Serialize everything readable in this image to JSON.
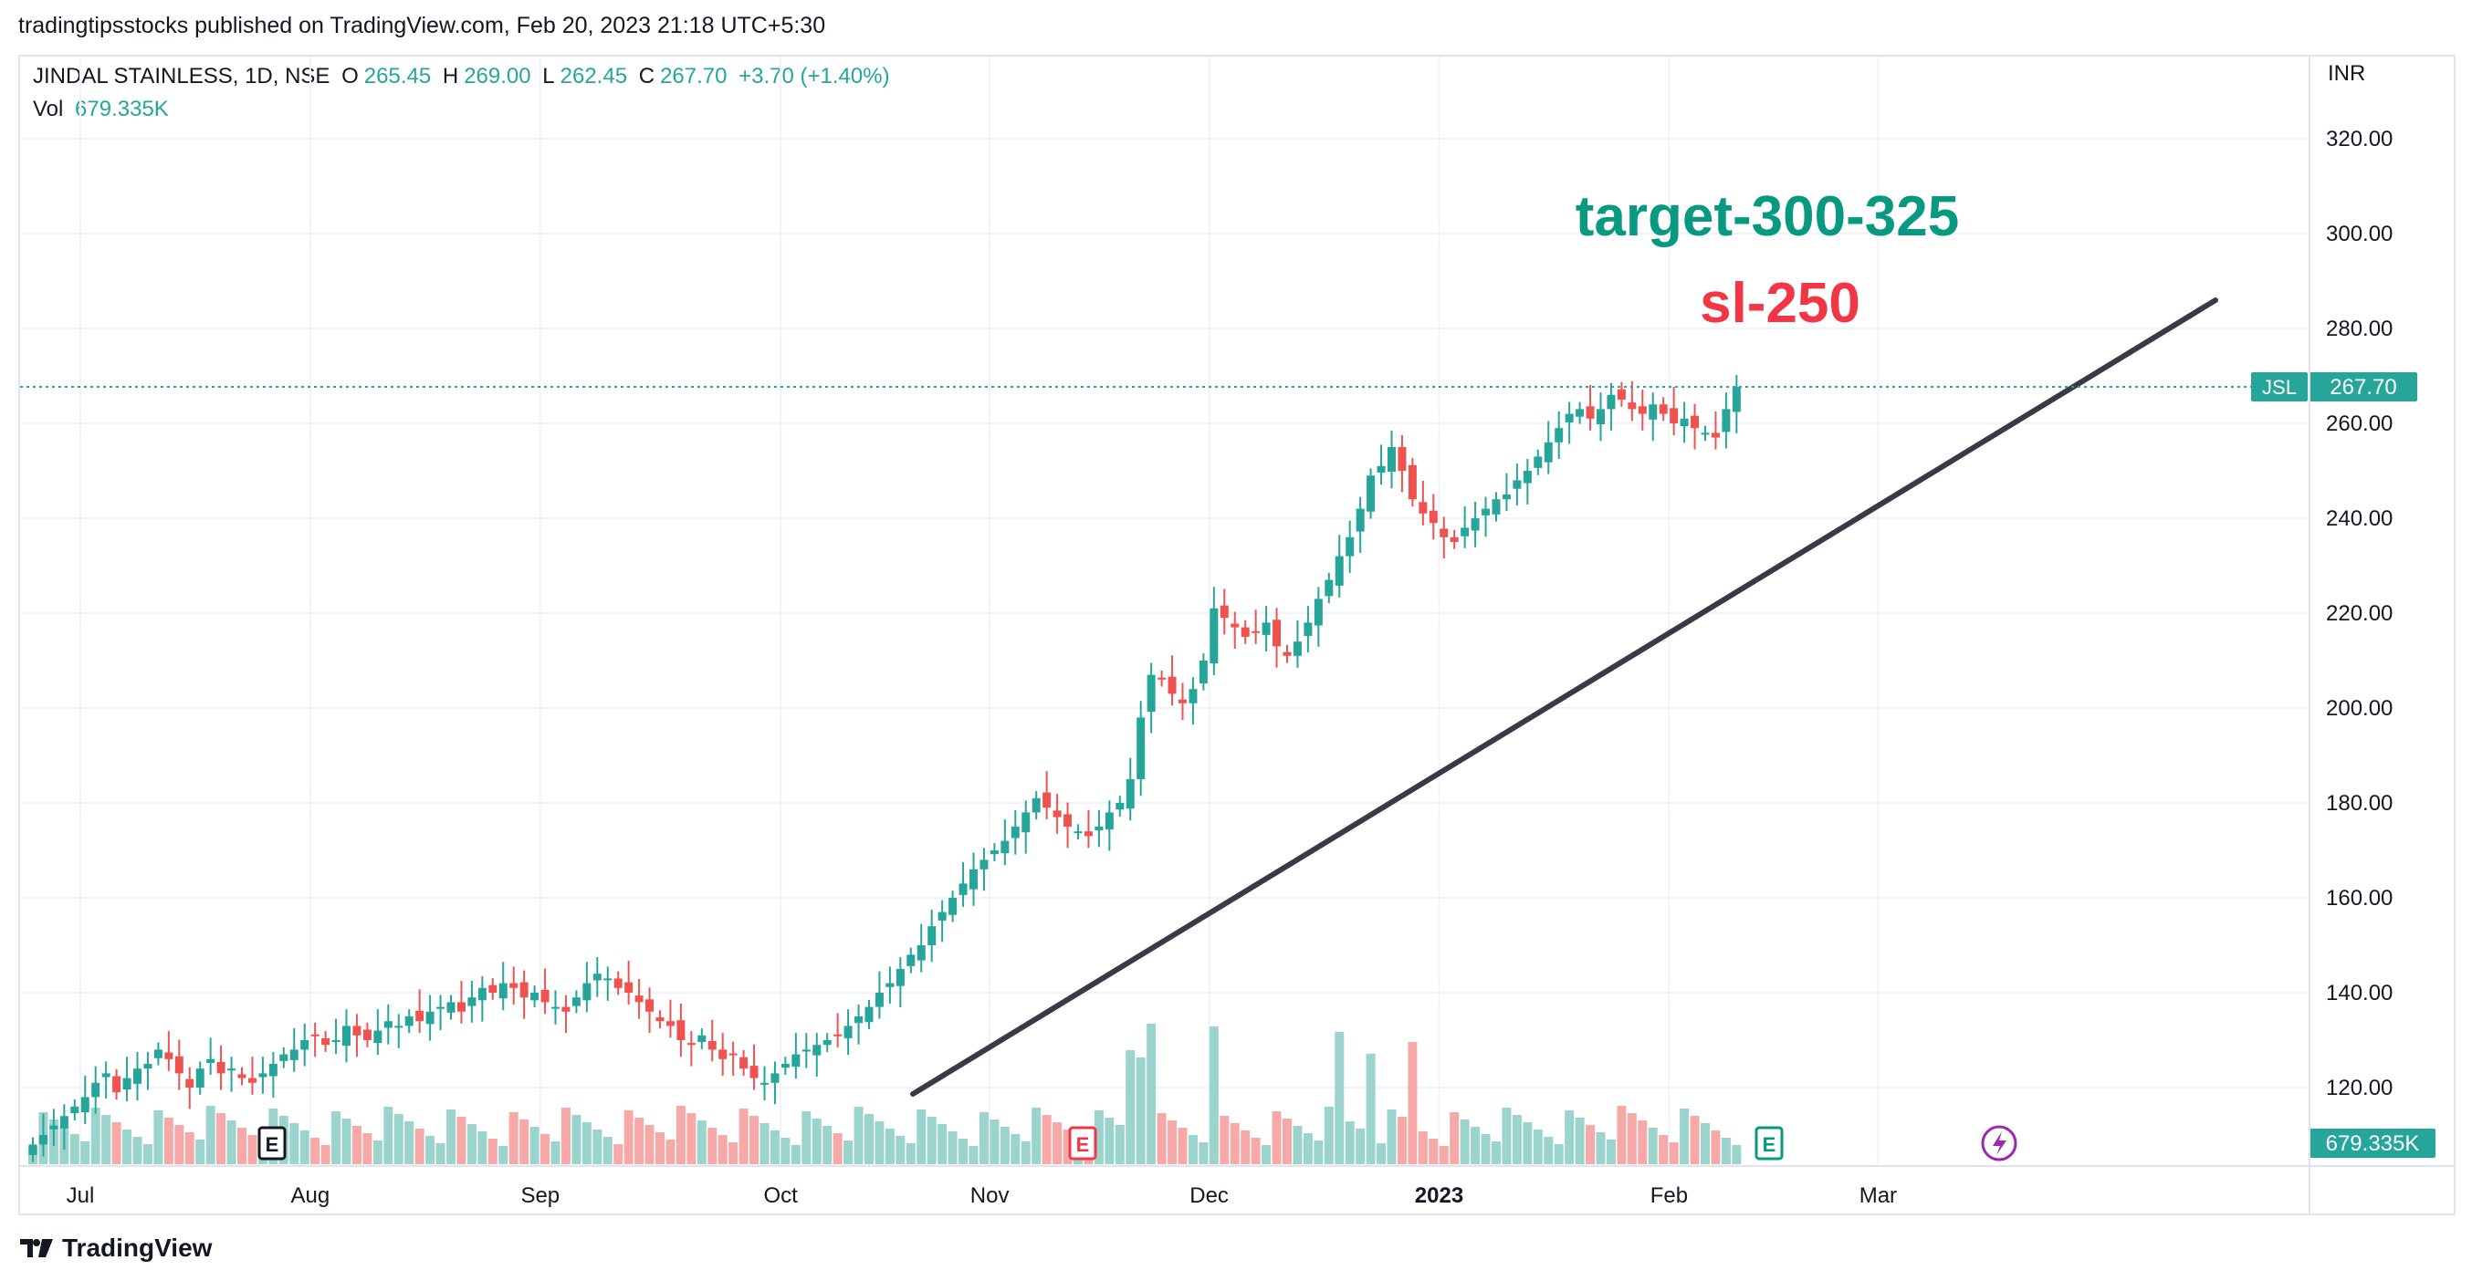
{
  "publisher_line": "tradingtipsstocks published on TradingView.com, Feb 20, 2023 21:18 UTC+5:30",
  "legend": {
    "symbol": "JINDAL STAINLESS, 1D, NSE",
    "o_label": "O",
    "o_value": "265.45",
    "h_label": "H",
    "h_value": "269.00",
    "l_label": "L",
    "l_value": "262.45",
    "c_label": "C",
    "c_value": "267.70",
    "change": "+3.70 (+1.40%)",
    "vol_label": "Vol",
    "vol_value": "679.335K"
  },
  "currency": "INR",
  "annotations": {
    "target": "target-300-325",
    "stoploss": "sl-250"
  },
  "last_price_tag": {
    "symbol": "JSL",
    "value": "267.70"
  },
  "volume_tag": "679.335K",
  "footer_brand": "TradingView",
  "colors": {
    "up": "#26a69a",
    "down": "#ef5350",
    "up_vol": "#9bd3cd",
    "down_vol": "#f7a9a7",
    "target": "#089981",
    "stoploss": "#f23645",
    "trendline": "#3a3a46"
  },
  "chart_data": {
    "type": "candlestick",
    "title": "JINDAL STAINLESS, 1D, NSE",
    "ylim": [
      104,
      332
    ],
    "y_ticks": [
      "120.00",
      "140.00",
      "160.00",
      "180.00",
      "200.00",
      "220.00",
      "240.00",
      "260.00",
      "280.00",
      "300.00",
      "320.00"
    ],
    "x_ticks": [
      {
        "label": "Jul",
        "index": 0
      },
      {
        "label": "Aug",
        "index": 22
      },
      {
        "label": "Sep",
        "index": 44
      },
      {
        "label": "Oct",
        "index": 67
      },
      {
        "label": "Nov",
        "index": 87
      },
      {
        "label": "Dec",
        "index": 108
      },
      {
        "label": "2023",
        "index": 130
      },
      {
        "label": "Feb",
        "index": 152
      },
      {
        "label": "Mar",
        "index": 172
      }
    ],
    "closes": [
      108,
      110,
      112,
      114,
      116,
      118,
      121,
      123,
      119,
      122,
      124,
      125,
      128,
      126,
      123,
      120,
      124,
      126,
      123,
      124,
      122,
      121,
      123,
      125,
      127,
      128,
      130,
      131,
      129,
      130,
      133,
      131,
      130,
      132,
      134,
      133,
      135,
      134,
      136,
      137,
      138,
      136,
      139,
      141,
      140,
      142,
      141,
      139,
      140,
      138,
      137,
      136,
      139,
      142,
      144,
      143,
      141,
      140,
      138,
      136,
      134,
      133,
      130,
      129,
      131,
      128,
      126,
      127,
      124,
      122,
      121,
      123,
      125,
      127,
      128,
      129,
      130,
      131,
      133,
      135,
      137,
      140,
      142,
      145,
      148,
      150,
      154,
      157,
      160,
      163,
      166,
      168,
      170,
      172,
      175,
      178,
      181,
      179,
      177,
      175,
      174,
      173,
      175,
      178,
      180,
      185,
      198,
      207,
      206,
      203,
      201,
      204,
      210,
      221,
      219,
      217,
      215,
      216,
      218,
      213,
      211,
      214,
      218,
      223,
      227,
      232,
      236,
      242,
      249,
      251,
      255,
      250,
      244,
      241,
      239,
      236,
      235,
      238,
      240,
      242,
      244,
      245,
      248,
      250,
      253,
      256,
      259,
      262,
      263,
      261,
      263,
      266,
      265,
      263,
      262,
      264,
      262,
      260,
      261,
      259,
      258,
      257,
      263,
      267.7
    ],
    "volume_note": "volume bars in K, values approximate",
    "series": [
      {
        "name": "JSL",
        "last": 267.7
      }
    ]
  }
}
